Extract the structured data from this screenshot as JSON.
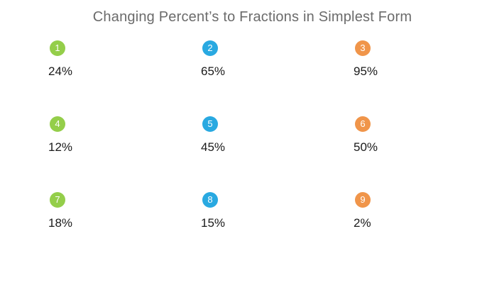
{
  "title": "Changing Percent’s to Fractions in Simplest Form",
  "colors": {
    "background": "#FFFFFF",
    "title_gray": "#6B6B6B",
    "text_black": "#1A1A1A",
    "green": "#94CE4A",
    "blue": "#29A9E1",
    "orange": "#F0954A"
  },
  "items": [
    {
      "number": "1",
      "percent": "24%",
      "color": "#94CE4A"
    },
    {
      "number": "2",
      "percent": "65%",
      "color": "#29A9E1"
    },
    {
      "number": "3",
      "percent": "95%",
      "color": "#F0954A"
    },
    {
      "number": "4",
      "percent": "12%",
      "color": "#94CE4A"
    },
    {
      "number": "5",
      "percent": "45%",
      "color": "#29A9E1"
    },
    {
      "number": "6",
      "percent": "50%",
      "color": "#F0954A"
    },
    {
      "number": "7",
      "percent": "18%",
      "color": "#94CE4A"
    },
    {
      "number": "8",
      "percent": "15%",
      "color": "#29A9E1"
    },
    {
      "number": "9",
      "percent": "2%",
      "color": "#F0954A"
    }
  ]
}
